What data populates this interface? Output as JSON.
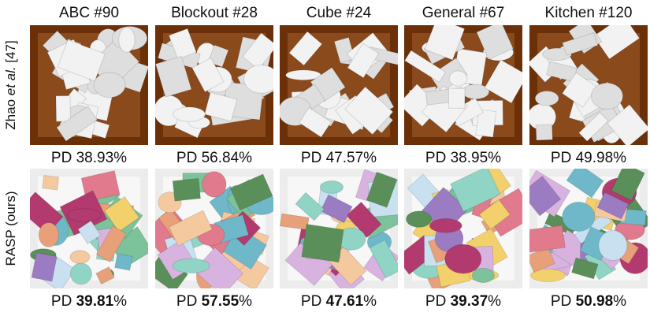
{
  "columns": [
    "ABC #90",
    "Blockout #28",
    "Cube #24",
    "General #67",
    "Kitchen #120"
  ],
  "rows": [
    {
      "method": [
        "Zhao ",
        "et al.",
        " [47]"
      ],
      "style": "box",
      "bold_values": false,
      "results": [
        {
          "metric": "PD",
          "value": 38.93,
          "unit": "%"
        },
        {
          "metric": "PD",
          "value": 56.84,
          "unit": "%"
        },
        {
          "metric": "PD",
          "value": 47.57,
          "unit": "%"
        },
        {
          "metric": "PD",
          "value": 38.95,
          "unit": "%"
        },
        {
          "metric": "PD",
          "value": 49.98,
          "unit": "%"
        }
      ]
    },
    {
      "method": [
        "RASP (ours)"
      ],
      "style": "open",
      "bold_values": true,
      "results": [
        {
          "metric": "PD",
          "value": 39.81,
          "unit": "%"
        },
        {
          "metric": "PD",
          "value": 57.55,
          "unit": "%"
        },
        {
          "metric": "PD",
          "value": 47.61,
          "unit": "%"
        },
        {
          "metric": "PD",
          "value": 39.37,
          "unit": "%"
        },
        {
          "metric": "PD",
          "value": 50.98,
          "unit": "%"
        }
      ]
    }
  ]
}
